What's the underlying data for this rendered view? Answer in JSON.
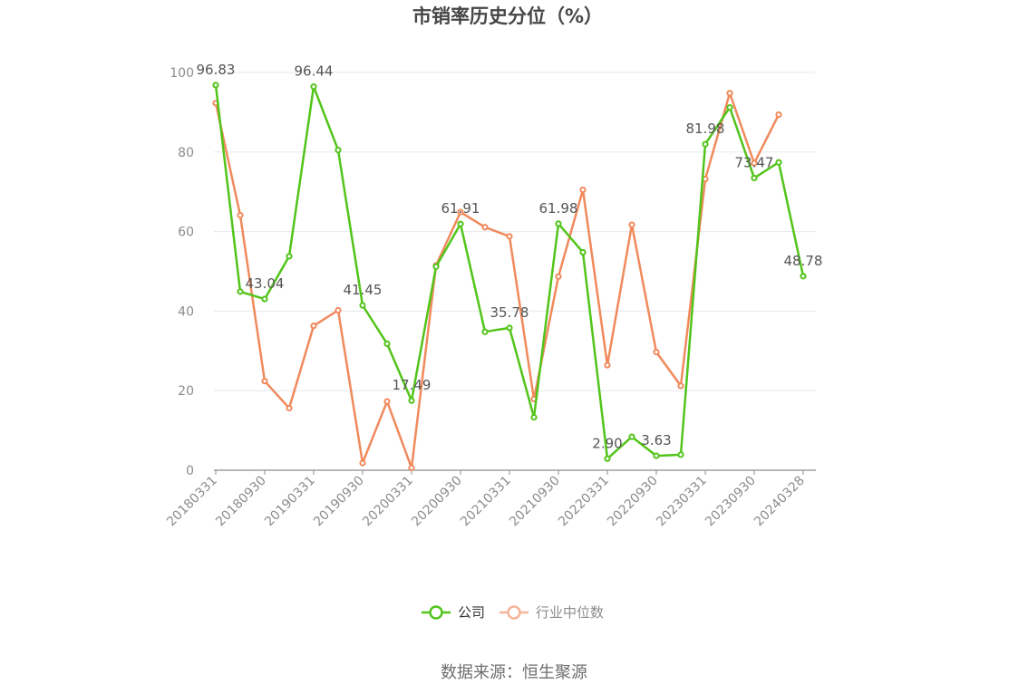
{
  "chart_data": {
    "type": "line",
    "title": "市销率历史分位（%）",
    "source": "数据来源：恒生聚源",
    "ylim": [
      0,
      100
    ],
    "yticks": [
      0,
      20,
      40,
      60,
      80,
      100
    ],
    "x_tick_labels": [
      "20180331",
      "20180930",
      "20190331",
      "20190930",
      "20200331",
      "20200930",
      "20210331",
      "20210930",
      "20220331",
      "20220930",
      "20230331",
      "20230930",
      "20240328"
    ],
    "x": [
      "20180331",
      "20180630",
      "20180930",
      "20181231",
      "20190331",
      "20190630",
      "20190930",
      "20191231",
      "20200331",
      "20200630",
      "20200930",
      "20201231",
      "20210331",
      "20210630",
      "20210930",
      "20211231",
      "20220331",
      "20220630",
      "20220930",
      "20221231",
      "20230331",
      "20230630",
      "20230930",
      "20231231",
      "20240328"
    ],
    "legend_position": "bottom",
    "series": [
      {
        "name": "公司",
        "color": "#52c41a",
        "values": [
          96.83,
          44.9,
          43.04,
          53.8,
          96.44,
          80.5,
          41.45,
          31.8,
          17.49,
          51.2,
          61.91,
          34.8,
          35.78,
          13.3,
          61.98,
          54.8,
          2.9,
          8.4,
          3.63,
          3.9,
          81.98,
          91.2,
          73.47,
          77.4,
          48.78
        ],
        "labels": {
          "0": "96.83",
          "2": "43.04",
          "4": "96.44",
          "6": "41.45",
          "8": "17.49",
          "10": "61.91",
          "12": "35.78",
          "14": "61.98",
          "16": "2.90",
          "18": "3.63",
          "20": "81.98",
          "22": "73.47",
          "24": "48.78"
        }
      },
      {
        "name": "行业中位数",
        "color": "#f08a5d",
        "values": [
          92.3,
          64.1,
          22.4,
          15.6,
          36.3,
          40.2,
          1.8,
          17.3,
          0.6,
          51.5,
          64.9,
          61.1,
          58.8,
          17.9,
          48.7,
          70.5,
          26.4,
          61.7,
          29.7,
          21.2,
          73.2,
          94.8,
          77.2,
          89.4,
          null
        ]
      }
    ]
  }
}
